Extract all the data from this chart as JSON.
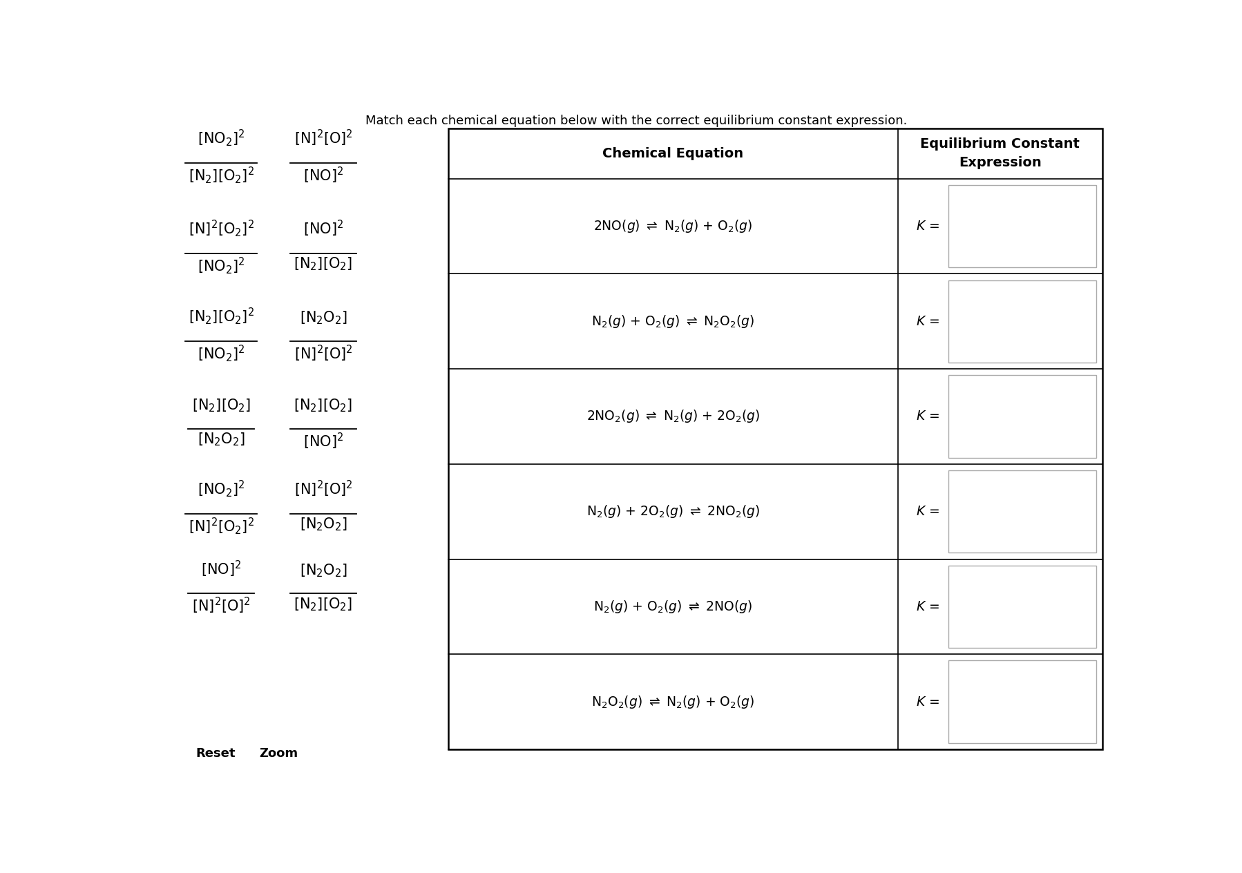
{
  "title": "Match each chemical equation below with the correct equilibrium constant expression.",
  "background_color": "#ffffff",
  "left_col1_fractions": [
    {
      "num": "$\\frac{[NO_2]^2}{[N_2][O_2]^2}$",
      "num_plain": "[NO$_2$]$^2$",
      "den_plain": "[N$_2$][O$_2$]$^2$"
    },
    {
      "num_plain": "[N]$^2$[O$_2$]$^2$",
      "den_plain": "[NO$_2$]$^2$"
    },
    {
      "num_plain": "[N$_2$][O$_2$]$^2$",
      "den_plain": "[NO$_2$]$^2$"
    },
    {
      "num_plain": "[N$_2$][O$_2$]",
      "den_plain": "[N$_2$O$_2$]"
    },
    {
      "num_plain": "[NO$_2$]$^2$",
      "den_plain": "[N]$^2$[O$_2$]$^2$"
    },
    {
      "num_plain": "[NO]$^2$",
      "den_plain": "[N]$^2$[O]$^2$"
    }
  ],
  "left_col2_fractions": [
    {
      "num_plain": "[N]$^2$[O]$^2$",
      "den_plain": "[NO]$^2$"
    },
    {
      "num_plain": "[NO]$^2$",
      "den_plain": "[N$_2$][O$_2$]"
    },
    {
      "num_plain": "[N$_2$O$_2$]",
      "den_plain": "[N]$^2$[O]$^2$"
    },
    {
      "num_plain": "[N$_2$][O$_2$]",
      "den_plain": "[NO]$^2$"
    },
    {
      "num_plain": "[N]$^2$[O]$^2$",
      "den_plain": "[N$_2$O$_2$]"
    },
    {
      "num_plain": "[N$_2$O$_2$]",
      "den_plain": "[N$_2$][O$_2$]"
    }
  ],
  "equations": [
    "2NO($g$) $\\rightleftharpoons$ N$_2$($g$) + O$_2$($g$)",
    "N$_2$($g$) + O$_2$($g$) $\\rightleftharpoons$ N$_2$O$_2$($g$)",
    "2NO$_2$($g$) $\\rightleftharpoons$ N$_2$($g$) + 2O$_2$($g$)",
    "N$_2$($g$) + 2O$_2$($g$) $\\rightleftharpoons$ 2NO$_2$($g$)",
    "N$_2$($g$) + O$_2$($g$) $\\rightleftharpoons$ 2NO($g$)",
    "N$_2$O$_2$($g$) $\\rightleftharpoons$ N$_2$($g$) + O$_2$($g$)"
  ],
  "col1_header": "Chemical Equation",
  "col2_header": "Equilibrium Constant\nExpression"
}
